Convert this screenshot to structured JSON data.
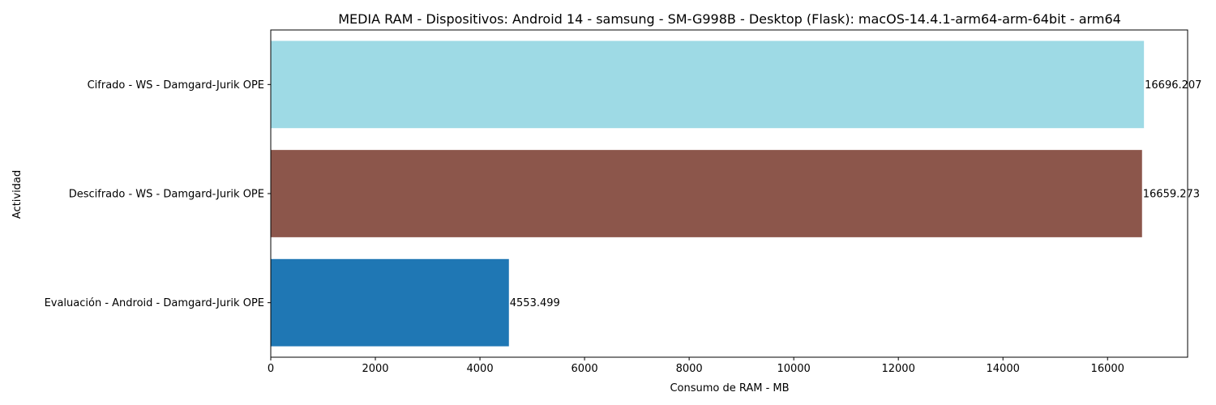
{
  "chart_data": {
    "type": "bar",
    "orientation": "horizontal",
    "title": "MEDIA RAM - Dispositivos: Android 14 - samsung - SM-G998B - Desktop (Flask): macOS-14.4.1-arm64-arm-64bit - arm64",
    "xlabel": "Consumo de RAM - MB",
    "ylabel": "Actividad",
    "categories": [
      "Evaluación - Android - Damgard-Jurik OPE",
      "Descifrado - WS - Damgard-Jurik OPE",
      "Cifrado - WS - Damgard-Jurik OPE"
    ],
    "values": [
      4553.499,
      16659.273,
      16696.207
    ],
    "value_labels": [
      "4553.499",
      "16659.273",
      "16696.207"
    ],
    "colors": [
      "#1f77b4",
      "#8c564b",
      "#9edae5"
    ],
    "xlim": [
      0,
      17531
    ],
    "xticks": [
      0,
      2000,
      4000,
      6000,
      8000,
      10000,
      12000,
      14000,
      16000
    ],
    "grid": false,
    "legend": "none"
  }
}
